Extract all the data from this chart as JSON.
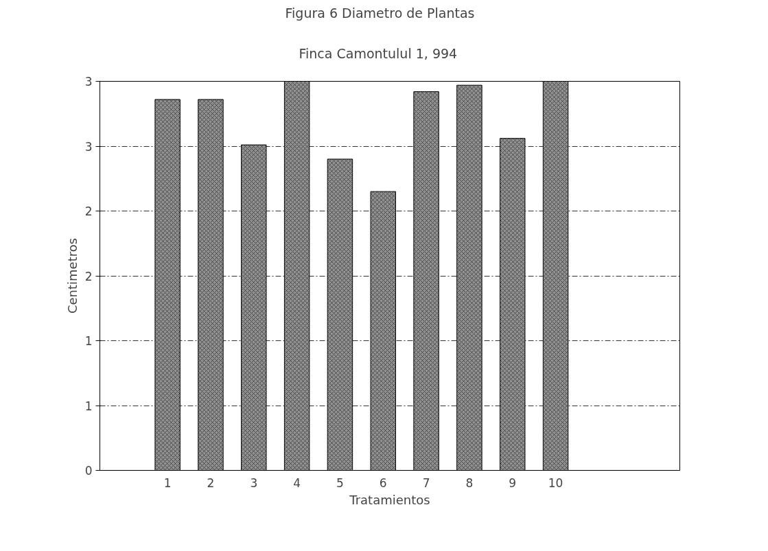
{
  "chart_data": {
    "type": "bar",
    "title": "Figura 6   Diametro de Plantas",
    "subtitle": "Finca Camontulul 1, 994",
    "xlabel": "Tratamientos",
    "ylabel": "Centimetros",
    "categories": [
      "1",
      "2",
      "3",
      "4",
      "5",
      "6",
      "7",
      "8",
      "9",
      "10"
    ],
    "values": [
      2.86,
      2.86,
      2.51,
      3.0,
      2.4,
      2.15,
      2.92,
      2.97,
      2.56,
      3.0
    ],
    "color": "#909090",
    "ylim": [
      0,
      3
    ],
    "yticks": [
      0,
      {
        "value": 0.5,
        "label": "1"
      },
      1,
      {
        "value": 1.5,
        "label": "2"
      },
      2,
      {
        "value": 2.5,
        "label": "3"
      },
      3
    ],
    "grid": "y"
  }
}
